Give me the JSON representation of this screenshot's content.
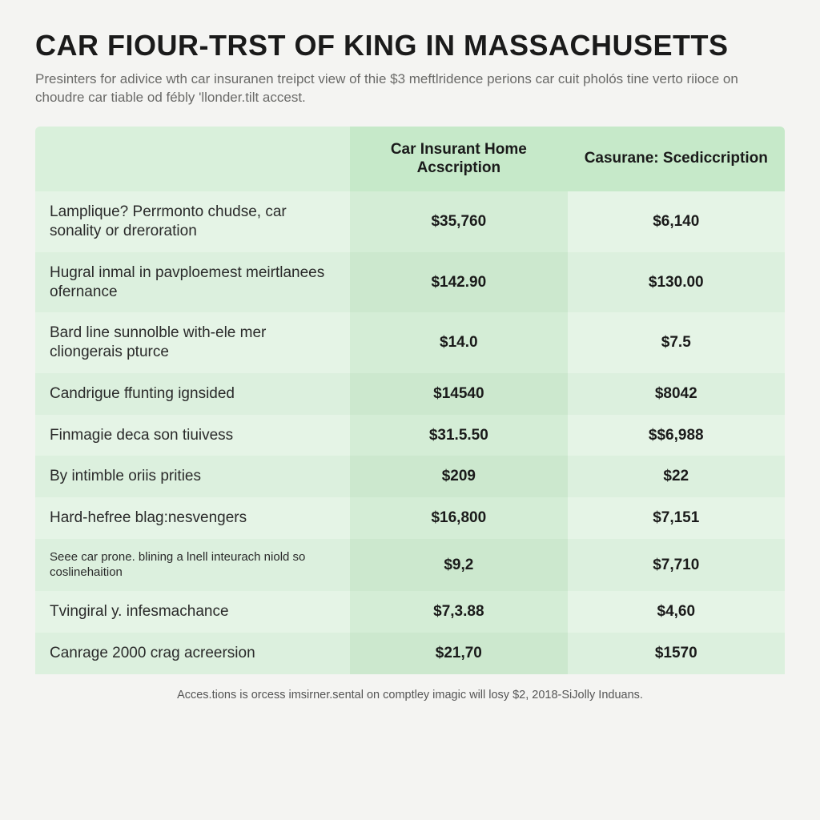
{
  "header": {
    "title": "CAR FIOUR-TRST OF KING IN MASSACHUSETTS",
    "subtitle": "Presinters for adivice wth car insuranen treipct view of thie $3 meftlridence perions car cuit pholós tine verto riioce on choudre car tiable od fébly 'llonder.tilt accest."
  },
  "table": {
    "type": "table",
    "background_color": "#f4f4f2",
    "header_bg": "#c6e9c9",
    "row_bg_a": "#e5f4e6",
    "row_bg_b": "#dcf0de",
    "val_col_bg_a": "#d4edd6",
    "val_col_bg_b": "#cce8ce",
    "title_fontsize": 36,
    "label_fontsize": 18,
    "value_fontsize": 22,
    "columns": [
      "",
      "Car Insurant Home Acscription",
      "Casurane: Scediccription"
    ],
    "rows": [
      {
        "label": "Lamplique? Perrmonto chudse, car sonality or dreroration",
        "v1": "$35,760",
        "v2": "$6,140",
        "small": false
      },
      {
        "label": "Hugral inmal in pavploemest meirtlanees ofernance",
        "v1": "$142.90",
        "v2": "$130.00",
        "small": false
      },
      {
        "label": "Bard line sunnolble with-ele mer cliongerais pturce",
        "v1": "$14.0",
        "v2": "$7.5",
        "small": false
      },
      {
        "label": "Candrigue ffunting ignsided",
        "v1": "$14540",
        "v2": "$8042",
        "small": false
      },
      {
        "label": "Finmagie deca son tiuivess",
        "v1": "$31.5.50",
        "v2": "$$6,988",
        "small": false
      },
      {
        "label": "By intimble oriis prities",
        "v1": "$209",
        "v2": "$22",
        "small": false
      },
      {
        "label": "Hard-hefree blag:nesvengers",
        "v1": "$16,800",
        "v2": "$7,151",
        "small": false
      },
      {
        "label": "Seee car prone. blining a lnell inteurach niold so coslinehaition",
        "v1": "$9,2",
        "v2": "$7,710",
        "small": true
      },
      {
        "label": "Tvingiral y. infesmachance",
        "v1": "$7,3.88",
        "v2": "$4,60",
        "small": false
      },
      {
        "label": "Canrage 2000 crag acreersion",
        "v1": "$21,70",
        "v2": "$1570",
        "small": false
      }
    ],
    "footnote": "Acces.tions is orcess imsirner.sental on comptley imagic will losy $2, 2018-SiJolly Induans."
  }
}
